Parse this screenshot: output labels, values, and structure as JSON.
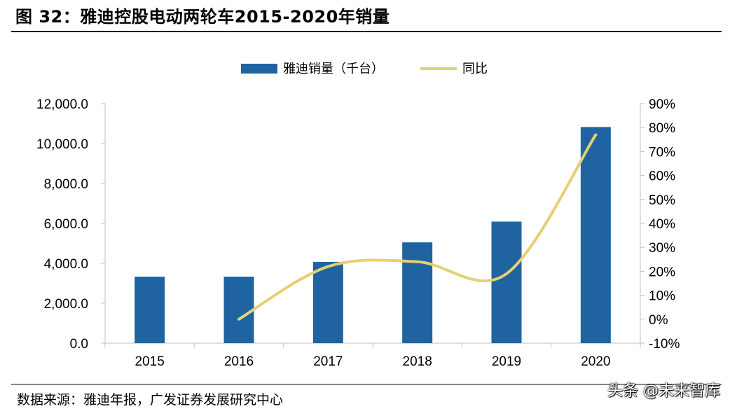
{
  "header": {
    "title": "图 32：雅迪控股电动两轮车2015-2020年销量"
  },
  "footer": {
    "source": "数据来源：雅迪年报，广发证券发展研究中心",
    "watermark": "头条 @未来智库"
  },
  "colors": {
    "bar": "#1f64a0",
    "line": "#e6cf73",
    "axis": "#bfbfbf"
  },
  "chart_data": {
    "type": "bar",
    "categories": [
      "2015",
      "2016",
      "2017",
      "2018",
      "2019",
      "2020"
    ],
    "series": [
      {
        "name": "雅迪销量（千台）",
        "type": "bar",
        "axis": "left",
        "values": [
          3330,
          3330,
          4070,
          5050,
          6090,
          10830
        ]
      },
      {
        "name": "同比",
        "type": "line",
        "axis": "right",
        "values": [
          null,
          0,
          22,
          24,
          19,
          77
        ]
      }
    ],
    "y_left": {
      "min": 0,
      "max": 12000,
      "step": 2000,
      "ticks": [
        "0.0",
        "2,000.0",
        "4,000.0",
        "6,000.0",
        "8,000.0",
        "10,000.0",
        "12,000.0"
      ]
    },
    "y_right": {
      "min": -10,
      "max": 90,
      "step": 10,
      "ticks": [
        "-10%",
        "0%",
        "10%",
        "20%",
        "30%",
        "40%",
        "50%",
        "60%",
        "70%",
        "80%",
        "90%"
      ]
    },
    "legend_position": "top-center",
    "grid": false
  }
}
